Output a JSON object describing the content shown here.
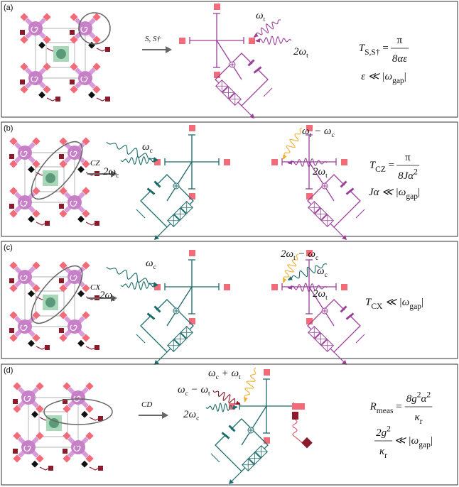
{
  "panels": [
    {
      "label": "(a)",
      "gate": "S, S†",
      "drives": [
        [
          "ω",
          {
            "sub": "t"
          }
        ],
        [
          "2ω",
          {
            "sub": "t"
          }
        ]
      ],
      "equations": [
        [
          "T",
          {
            "sub": "S,S†"
          },
          " = ",
          {
            "num": [
              "π"
            ],
            "den": [
              "8αε"
            ]
          }
        ],
        [
          "ε ≪ |ω",
          {
            "sub": "gap"
          },
          "|"
        ]
      ]
    },
    {
      "label": "(b)",
      "gate": "CZ",
      "drives": [
        [
          "ω",
          {
            "sub": "c"
          }
        ],
        [
          "2ω",
          {
            "sub": "c"
          }
        ],
        [
          "ω",
          {
            "sub": "t"
          },
          " − ω",
          {
            "sub": "c"
          }
        ],
        [
          "2ω",
          {
            "sub": "t"
          }
        ]
      ],
      "equations": [
        [
          "T",
          {
            "sub": "CZ"
          },
          " = ",
          {
            "num": [
              "π"
            ],
            "den": [
              "8Jα",
              {
                "sup": "2"
              }
            ]
          }
        ],
        [
          "Jα ≪ |ω",
          {
            "sub": "gap"
          },
          "|"
        ]
      ]
    },
    {
      "label": "(c)",
      "gate": "CX",
      "drives": [
        [
          "ω",
          {
            "sub": "c"
          }
        ],
        [
          "2ω",
          {
            "sub": "c"
          }
        ],
        [
          "2ω",
          {
            "sub": "t"
          },
          " − ω",
          {
            "sub": "c"
          }
        ],
        [
          "ω",
          {
            "sub": "c"
          }
        ],
        [
          "2ω",
          {
            "sub": "t"
          }
        ]
      ],
      "equations": [
        [
          "T",
          {
            "sub": "CX"
          },
          " ≪ |ω",
          {
            "sub": "gap"
          },
          "|"
        ]
      ]
    },
    {
      "label": "(d)",
      "gate": "CD",
      "drives": [
        [
          "ω",
          {
            "sub": "c"
          },
          " + ω",
          {
            "sub": "t"
          }
        ],
        [
          "ω",
          {
            "sub": "c"
          },
          " − ω",
          {
            "sub": "t"
          }
        ],
        [
          "2ω",
          {
            "sub": "c"
          }
        ]
      ],
      "equations": [
        [
          "R",
          {
            "sub": "meas"
          },
          " = ",
          {
            "num": [
              "8g",
              {
                "sup": "2"
              },
              "α",
              {
                "sup": "2"
              }
            ],
            "den": [
              "κ",
              {
                "sub": "r"
              }
            ]
          }
        ],
        [
          {
            "num": [
              "2g",
              {
                "sup": "2"
              }
            ],
            "den": [
              "κ",
              {
                "sub": "r"
              }
            ]
          },
          " ≪ |ω",
          {
            "sub": "gap"
          },
          "|"
        ]
      ]
    }
  ]
}
